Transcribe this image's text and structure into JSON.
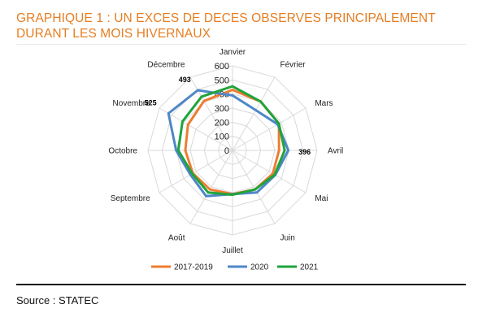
{
  "title": "GRAPHIQUE 1 : UN EXCES DE DECES OBSERVES PRINCIPALEMENT DURANT LES MOIS HIVERNAUX",
  "source": "Source : STATEC",
  "chart_data": {
    "type": "radar",
    "categories": [
      "Janvier",
      "Février",
      "Mars",
      "Avril",
      "Mai",
      "Juin",
      "Juillet",
      "Août",
      "Septembre",
      "Octobre",
      "Novembre",
      "Décembre"
    ],
    "rlim": [
      0,
      600
    ],
    "rticks": [
      "0",
      "100",
      "200",
      "300",
      "400",
      "500",
      "600"
    ],
    "grid": true,
    "legend": "bottom",
    "series": [
      {
        "name": "2017-2019",
        "color": "#ed7d31",
        "values": [
          430,
          400,
          380,
          330,
          330,
          320,
          310,
          320,
          325,
          335,
          365,
          405
        ]
      },
      {
        "name": "2020",
        "color": "#4e87c8",
        "values": [
          390,
          330,
          370,
          396,
          350,
          345,
          310,
          375,
          345,
          400,
          525,
          493
        ]
      },
      {
        "name": "2021",
        "color": "#1fa43b",
        "values": [
          455,
          400,
          380,
          370,
          345,
          320,
          315,
          345,
          330,
          385,
          410,
          440
        ]
      }
    ],
    "data_labels": [
      {
        "series": "2020",
        "category": "Avril",
        "text": "396"
      },
      {
        "series": "2020",
        "category": "Novembre",
        "text": "525"
      },
      {
        "series": "2020",
        "category": "Décembre",
        "text": "493"
      }
    ]
  }
}
